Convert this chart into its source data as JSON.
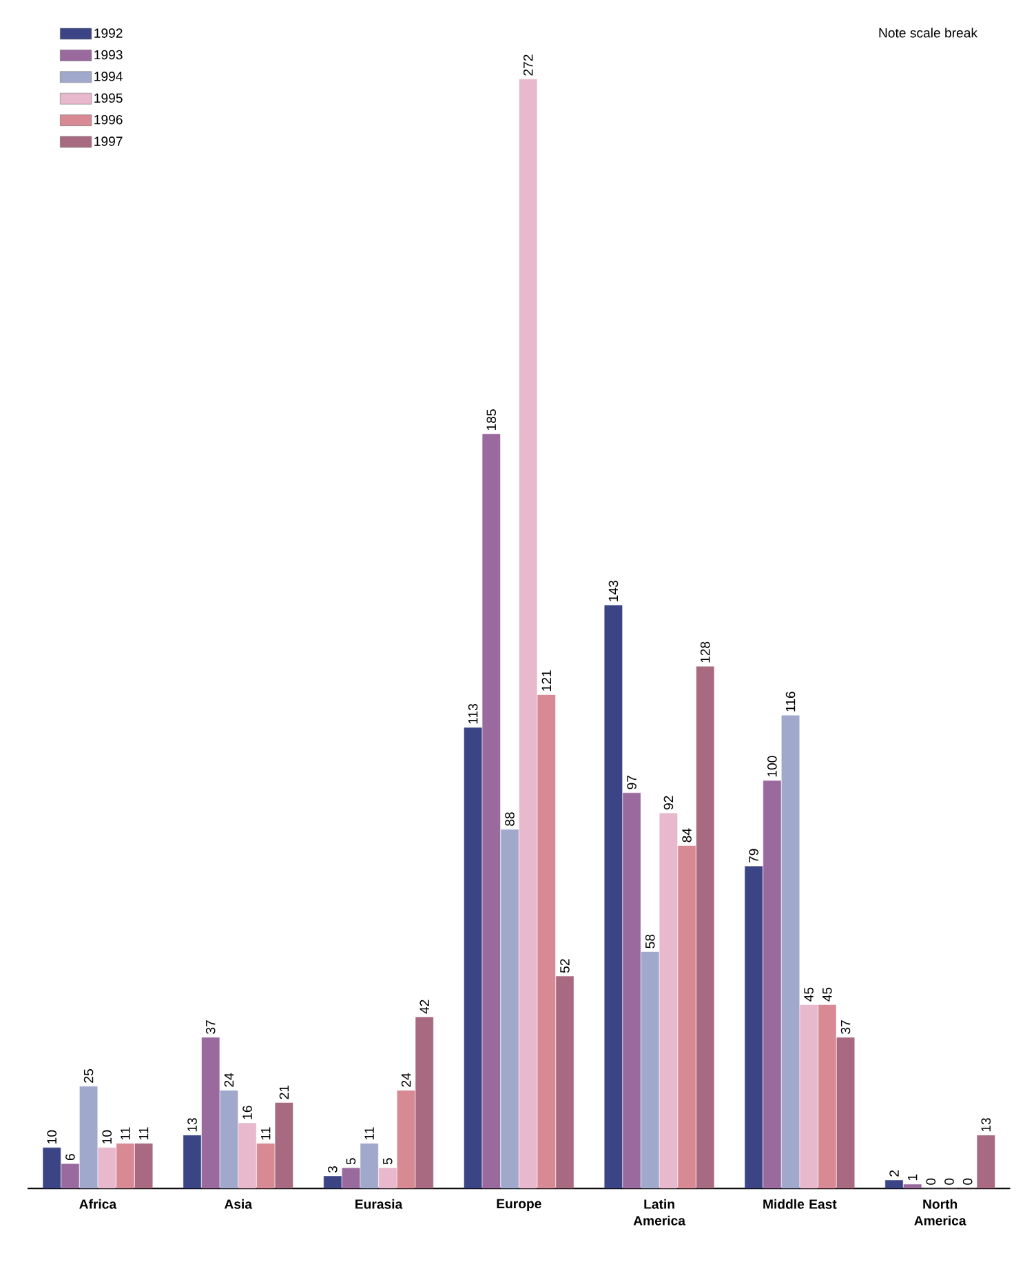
{
  "chart_data": {
    "type": "bar",
    "categories": [
      "Africa",
      "Asia",
      "Eurasia",
      "Europe",
      "Latin America",
      "Middle East",
      "North America"
    ],
    "series": [
      {
        "name": "1992",
        "color": "#3b4585",
        "values": [
          10,
          13,
          3,
          113,
          143,
          79,
          2
        ]
      },
      {
        "name": "1993",
        "color": "#9a6a9e",
        "values": [
          6,
          37,
          5,
          185,
          97,
          100,
          1
        ]
      },
      {
        "name": "1994",
        "color": "#a0a8cc",
        "values": [
          25,
          24,
          11,
          88,
          58,
          116,
          0
        ]
      },
      {
        "name": "1995",
        "color": "#e8b8cc",
        "values": [
          10,
          16,
          5,
          272,
          92,
          45,
          0
        ]
      },
      {
        "name": "1996",
        "color": "#d88a94",
        "values": [
          11,
          11,
          24,
          121,
          84,
          45,
          0
        ]
      },
      {
        "name": "1997",
        "color": "#a86a80",
        "values": [
          11,
          21,
          42,
          52,
          128,
          37,
          13
        ]
      }
    ],
    "annotations": [
      "Note scale break"
    ],
    "data_labels": true,
    "legend": "top left"
  }
}
